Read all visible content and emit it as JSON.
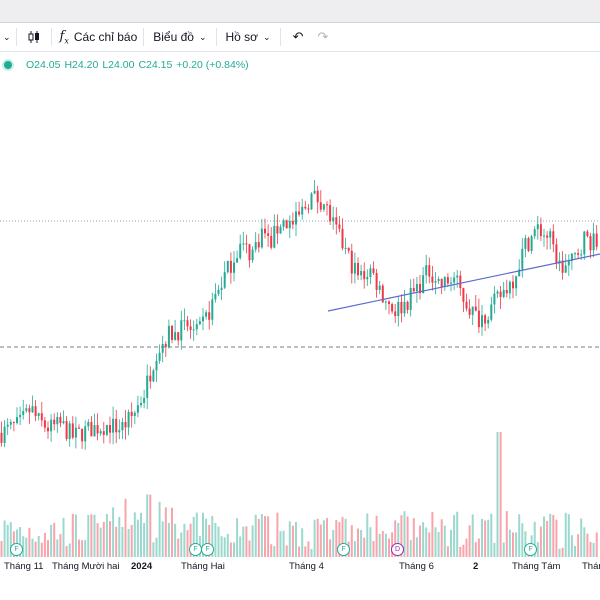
{
  "toolbar": {
    "indicators_label": "Các chỉ báo",
    "chart_label": "Biểu đồ",
    "profile_label": "Hồ sơ"
  },
  "legend": {
    "open": "O24.05",
    "high": "H24.20",
    "low": "L24.00",
    "close": "C24.15",
    "change": "+0.20 (+0.84%)"
  },
  "colors": {
    "up": "#22ab94",
    "down": "#f23645",
    "trendline": "#5b6ad0"
  },
  "x_axis": {
    "labels": [
      "Tháng 11",
      "Tháng Mười hai",
      "2024",
      "Tháng Hai",
      "Tháng 4",
      "Tháng 6",
      "2",
      "Tháng Tám",
      "Tháng"
    ]
  },
  "events": [
    {
      "letter": "F"
    },
    {
      "letter": "F"
    },
    {
      "letter": "F"
    },
    {
      "letter": "F"
    },
    {
      "letter": "D"
    },
    {
      "letter": "F"
    }
  ],
  "chart_data": {
    "type": "candlestick",
    "y_axis_visible": false,
    "grid": false,
    "price_path_relative": [
      [
        0,
        78
      ],
      [
        3,
        80
      ],
      [
        5,
        84
      ],
      [
        6,
        81
      ],
      [
        8,
        79
      ],
      [
        10,
        80
      ],
      [
        12,
        77
      ],
      [
        15,
        79
      ],
      [
        18,
        80
      ],
      [
        20,
        79
      ],
      [
        22,
        82
      ],
      [
        24,
        88
      ],
      [
        26,
        98
      ],
      [
        28,
        102
      ],
      [
        31,
        104
      ],
      [
        33,
        102
      ],
      [
        35,
        108
      ],
      [
        36,
        112
      ],
      [
        38,
        118
      ],
      [
        40,
        124
      ],
      [
        42,
        122
      ],
      [
        44,
        128
      ],
      [
        45,
        124
      ],
      [
        47,
        130
      ],
      [
        49,
        129
      ],
      [
        50,
        131
      ],
      [
        52,
        136
      ],
      [
        54,
        135
      ],
      [
        56,
        128
      ],
      [
        58,
        122
      ],
      [
        60,
        116
      ],
      [
        62,
        118
      ],
      [
        64,
        112
      ],
      [
        66,
        108
      ],
      [
        68,
        110
      ],
      [
        70,
        114
      ],
      [
        72,
        118
      ],
      [
        74,
        114
      ],
      [
        76,
        116
      ],
      [
        78,
        110
      ],
      [
        80,
        106
      ],
      [
        82,
        108
      ],
      [
        84,
        112
      ],
      [
        86,
        116
      ],
      [
        88,
        124
      ],
      [
        90,
        128
      ],
      [
        92,
        126
      ],
      [
        94,
        118
      ],
      [
        96,
        120
      ],
      [
        98,
        126
      ],
      [
        100,
        124
      ]
    ],
    "volume_relative": "varies; single spike near the 82% mark"
  }
}
